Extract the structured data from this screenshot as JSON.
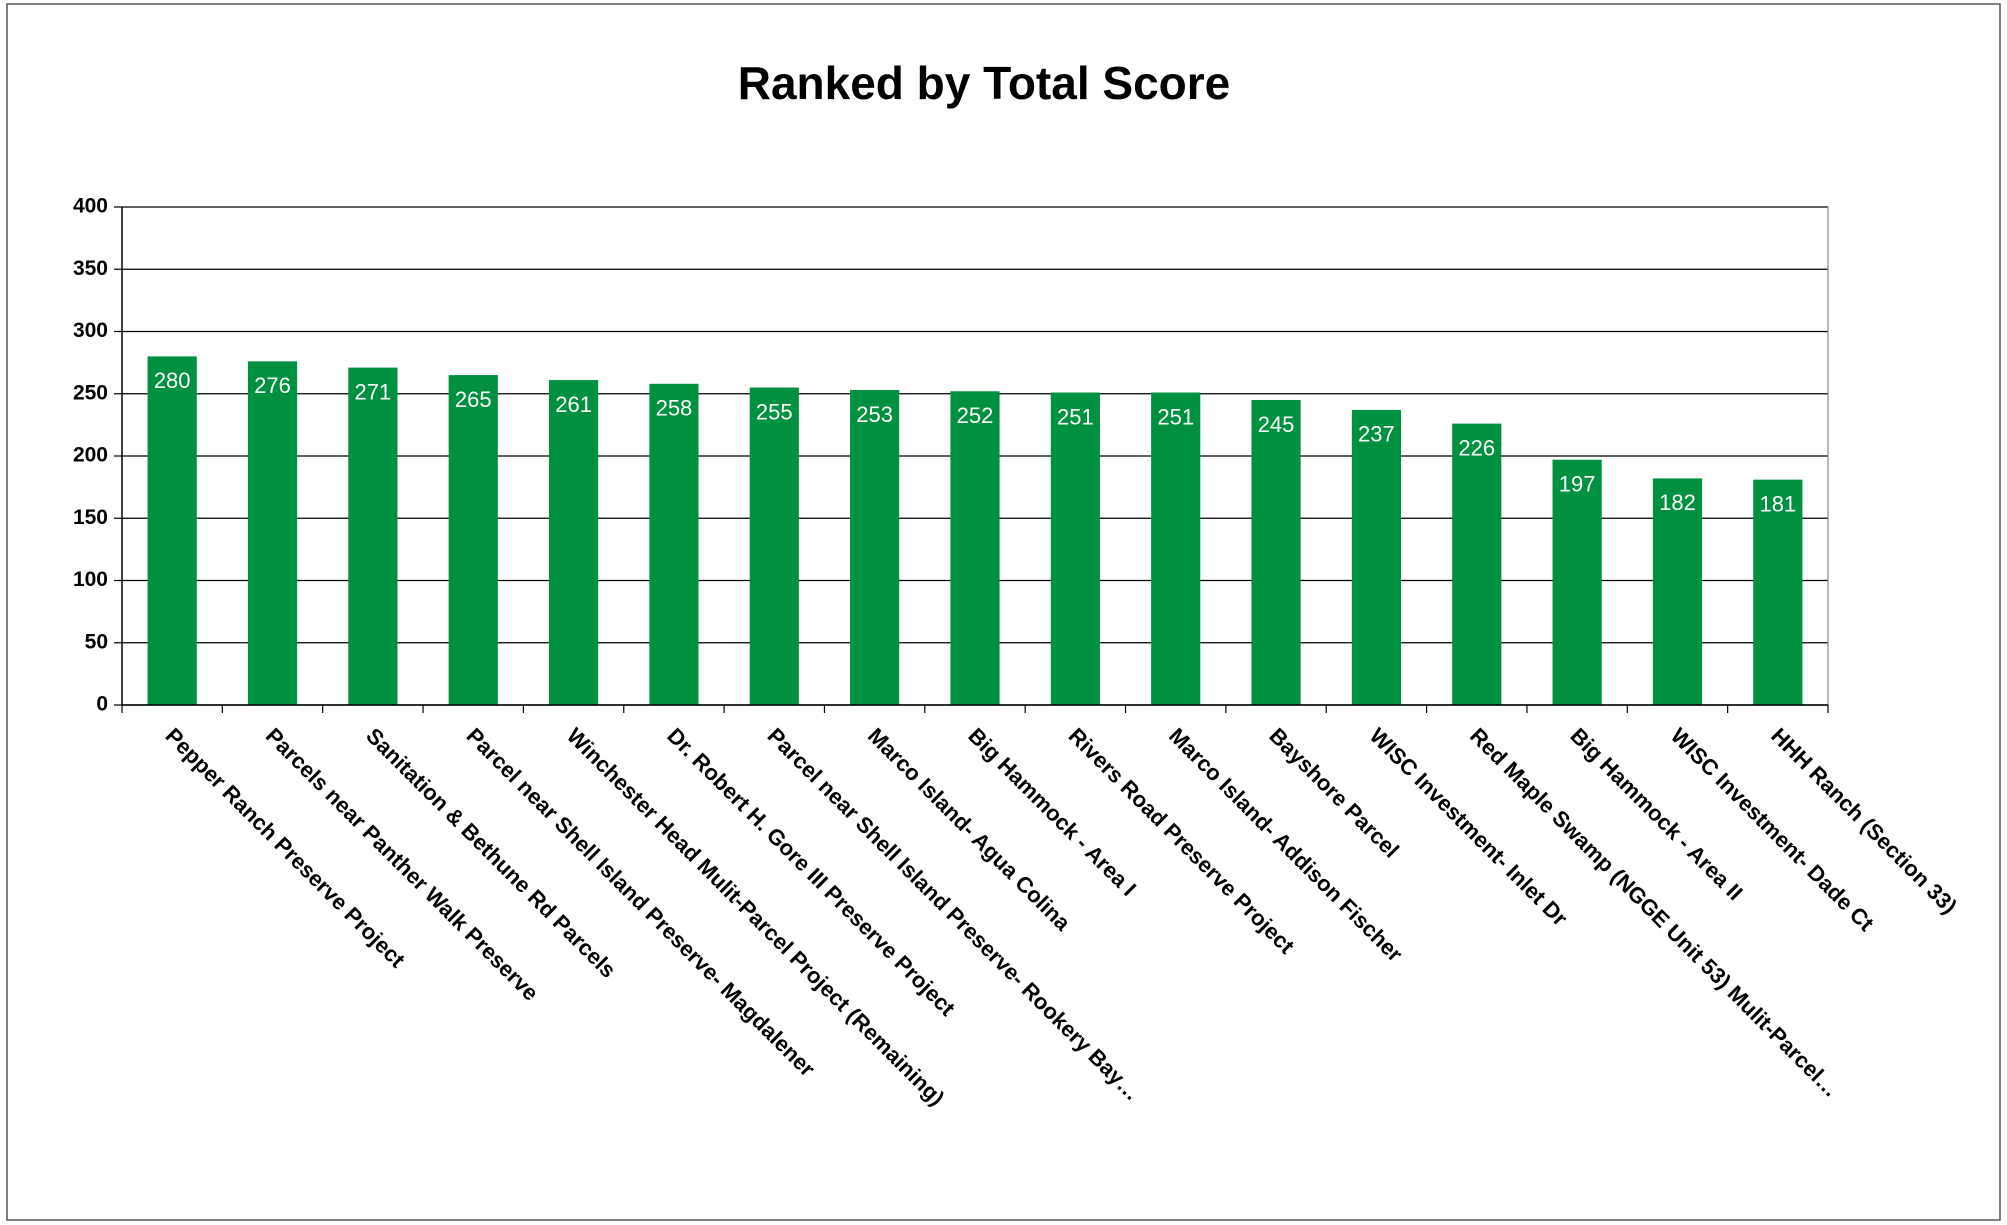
{
  "chart_data": {
    "type": "bar",
    "title": "Ranked by Total Score",
    "categories": [
      "Pepper Ranch Preserve Project",
      "Parcels near Panther Walk Preserve",
      "Sanitation & Bethune Rd Parcels",
      "Parcel near Shell Island Preserve- Magdalener",
      "Winchester Head Mulit-Parcel Project (Remaining)",
      "Dr. Robert H. Gore III Preserve Project",
      "Parcel near Shell Island Preserve- Rookery Bay…",
      "Marco Island- Agua Colina",
      "Big Hammock - Area I",
      "Rivers Road Preserve Project",
      "Marco Island- Addison Fischer",
      "Bayshore Parcel",
      "WISC Investment- Inlet Dr",
      "Red Maple Swamp (NGGE Unit 53) Mulit-Parcel…",
      "Big Hammock - Area II",
      "WISC Investment- Dade Ct",
      "HHH Ranch (Section 33)"
    ],
    "values": [
      280,
      276,
      271,
      265,
      261,
      258,
      255,
      253,
      252,
      251,
      251,
      245,
      237,
      226,
      197,
      182,
      181
    ],
    "color": "#009140",
    "ylim": [
      0,
      400
    ],
    "yticks": [
      0,
      50,
      100,
      150,
      200,
      250,
      300,
      350,
      400
    ],
    "grid": true
  }
}
